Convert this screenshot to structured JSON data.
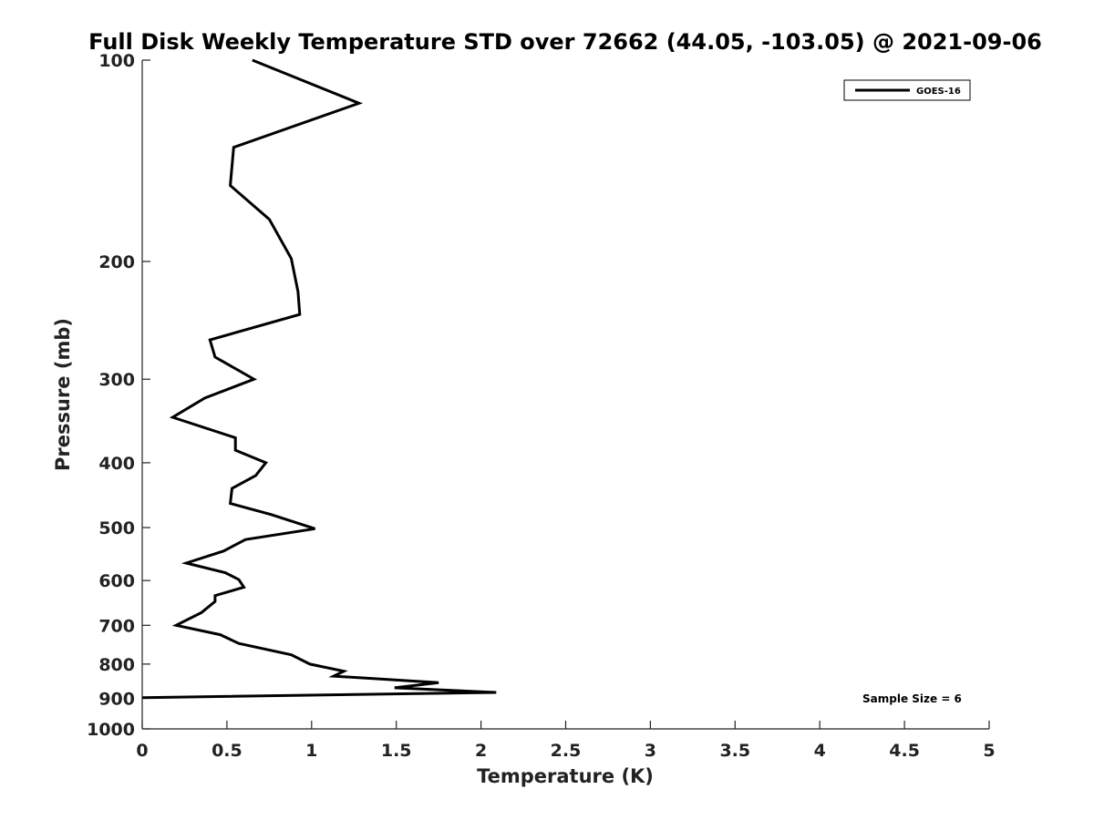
{
  "chart_data": {
    "type": "line",
    "title": "Full Disk Weekly Temperature STD over 72662 (44.05, -103.05) @ 2021-09-06",
    "xlabel": "Temperature (K)",
    "ylabel": "Pressure (mb)",
    "xlim": [
      0,
      5
    ],
    "ylim": [
      100,
      1000
    ],
    "yscale": "log",
    "y_reversed": true,
    "x_ticks": [
      "0",
      "0.5",
      "1",
      "1.5",
      "2",
      "2.5",
      "3",
      "3.5",
      "4",
      "4.5",
      "5"
    ],
    "y_ticks": [
      "100",
      "200",
      "300",
      "400",
      "500",
      "600",
      "700",
      "800",
      "900",
      "1000"
    ],
    "grid": false,
    "legend_position": "top-right",
    "annotation": "Sample Size = 6",
    "series": [
      {
        "name": "GOES-16",
        "color": "#000000",
        "points": [
          [
            0.65,
            100
          ],
          [
            1.28,
            116
          ],
          [
            0.54,
            135
          ],
          [
            0.52,
            154
          ],
          [
            0.75,
            173
          ],
          [
            0.88,
            198
          ],
          [
            0.92,
            222
          ],
          [
            0.93,
            240
          ],
          [
            0.4,
            262
          ],
          [
            0.43,
            278
          ],
          [
            0.66,
            300
          ],
          [
            0.37,
            320
          ],
          [
            0.18,
            342
          ],
          [
            0.55,
            367
          ],
          [
            0.55,
            383
          ],
          [
            0.73,
            400
          ],
          [
            0.67,
            418
          ],
          [
            0.53,
            437
          ],
          [
            0.52,
            460
          ],
          [
            0.76,
            478
          ],
          [
            1.02,
            502
          ],
          [
            0.61,
            521
          ],
          [
            0.48,
            542
          ],
          [
            0.26,
            565
          ],
          [
            0.49,
            584
          ],
          [
            0.57,
            598
          ],
          [
            0.6,
            614
          ],
          [
            0.43,
            632
          ],
          [
            0.43,
            645
          ],
          [
            0.35,
            670
          ],
          [
            0.2,
            700
          ],
          [
            0.46,
            723
          ],
          [
            0.57,
            745
          ],
          [
            0.88,
            775
          ],
          [
            0.99,
            800
          ],
          [
            1.19,
            820
          ],
          [
            1.13,
            834
          ],
          [
            1.75,
            853
          ],
          [
            1.49,
            868
          ],
          [
            2.09,
            882
          ],
          [
            0.0,
            898
          ]
        ]
      }
    ]
  }
}
